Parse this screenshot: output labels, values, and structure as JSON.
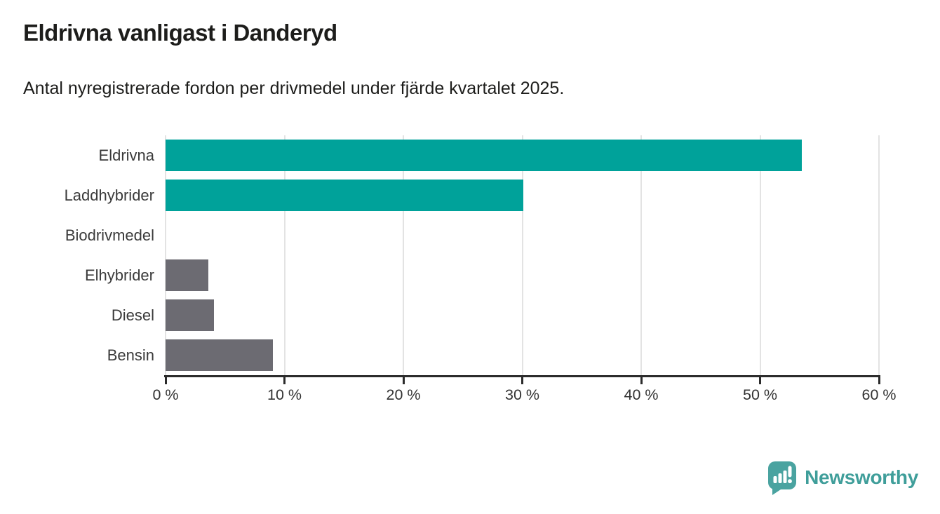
{
  "header": {
    "title": "Eldrivna vanligast i Danderyd",
    "subtitle": "Antal nyregistrerade fordon per drivmedel under fjärde kvartalet 2025."
  },
  "chart_data": {
    "type": "bar",
    "orientation": "horizontal",
    "title": "Eldrivna vanligast i Danderyd",
    "subtitle": "Antal nyregistrerade fordon per drivmedel under fjärde kvartalet 2025.",
    "categories": [
      "Eldrivna",
      "Laddhybrider",
      "Biodrivmedel",
      "Elhybrider",
      "Diesel",
      "Bensin"
    ],
    "values": [
      53.5,
      30.1,
      0,
      3.6,
      4.1,
      9.0
    ],
    "unit": "%",
    "xlim": [
      0,
      60
    ],
    "x_tick_values": [
      0,
      10,
      20,
      30,
      40,
      50,
      60
    ],
    "x_tick_labels": [
      "0 %",
      "10 %",
      "20 %",
      "30 %",
      "40 %",
      "50 %",
      "60 %"
    ],
    "bar_colors": [
      "#00a29a",
      "#00a29a",
      "#00a29a",
      "#6c6b72",
      "#6c6b72",
      "#6c6b72"
    ],
    "grid": true,
    "legend": false
  },
  "branding": {
    "logo_text": "Newsworthy",
    "logo_text_color": "#3f9e9a",
    "logo_icon_color": "#4aa3a0",
    "logo_icon": "newsworthy-speech-bubble-bar-chart-icon"
  },
  "colors": {
    "highlight_teal": "#00a29a",
    "muted_gray": "#6c6b72",
    "axis": "#2b2b2b",
    "gridline": "#e3e3e3",
    "text": "#1d1d1b"
  }
}
